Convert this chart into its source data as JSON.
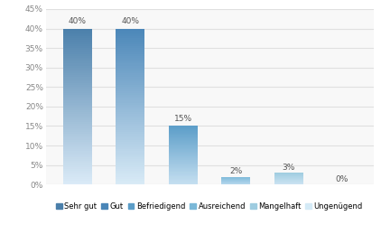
{
  "categories": [
    "Sehr gut",
    "Gut",
    "Befriedigend",
    "Ausreichend",
    "Mangelhaft",
    "Ungenügend"
  ],
  "values": [
    40,
    40,
    15,
    2,
    3,
    0
  ],
  "bar_colors_top": [
    "#4a7faa",
    "#4a86b8",
    "#5b9dc8",
    "#7ab8d8",
    "#9ecce0",
    "#c9e0ec"
  ],
  "bar_colors_bottom": [
    "#daeaf7",
    "#d8eaf6",
    "#c5dff0",
    "#b8d8ee",
    "#cce3f2",
    "#e0eff8"
  ],
  "labels": [
    "40%",
    "40%",
    "15%",
    "2%",
    "3%",
    "0%"
  ],
  "ylim": [
    0,
    45
  ],
  "yticks": [
    0,
    5,
    10,
    15,
    20,
    25,
    30,
    35,
    40,
    45
  ],
  "ytick_labels": [
    "0%",
    "5%",
    "10%",
    "15%",
    "20%",
    "25%",
    "30%",
    "35%",
    "40%",
    "45%"
  ],
  "legend_colors": [
    "#4a7faa",
    "#4a86b8",
    "#5b9dc8",
    "#7ab8d8",
    "#9ecce0",
    "#d4eaf6"
  ],
  "background_color": "#ffffff",
  "plot_bg_color": "#f8f8f8",
  "grid_color": "#e0e0e0",
  "bar_width": 0.55,
  "label_fontsize": 6.5,
  "tick_fontsize": 6.5,
  "legend_fontsize": 6.0
}
